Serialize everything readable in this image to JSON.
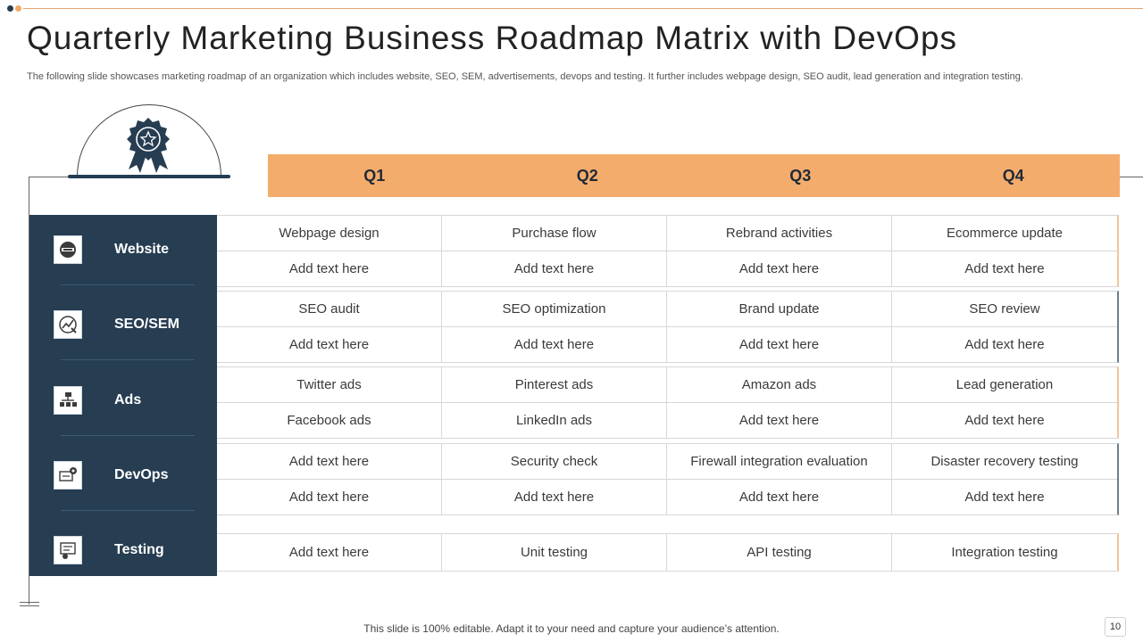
{
  "title": "Quarterly Marketing Business Roadmap Matrix with DevOps",
  "subtitle": "The following slide showcases marketing roadmap of an organization which includes website, SEO, SEM,  advertisements, devops and testing. It further includes webpage design, SEO audit, lead generation and integration testing.",
  "quarters": [
    "Q1",
    "Q2",
    "Q3",
    "Q4"
  ],
  "categories": [
    {
      "label": "Website",
      "icon": "website-icon"
    },
    {
      "label": "SEO/SEM",
      "icon": "seo-chart-icon"
    },
    {
      "label": "Ads",
      "icon": "ads-network-icon"
    },
    {
      "label": "DevOps",
      "icon": "devops-gear-icon"
    },
    {
      "label": "Testing",
      "icon": "testing-checklist-icon"
    }
  ],
  "matrix": [
    [
      [
        "Webpage design",
        "Purchase flow",
        "Rebrand activities",
        "Ecommerce update"
      ],
      [
        "Add text here",
        "Add text here",
        "Add text here",
        "Add text here"
      ]
    ],
    [
      [
        "SEO audit",
        "SEO optimization",
        "Brand update",
        "SEO review"
      ],
      [
        "Add text here",
        "Add text here",
        "Add text here",
        "Add text here"
      ]
    ],
    [
      [
        "Twitter ads",
        "Pinterest ads",
        "Amazon ads",
        "Lead generation"
      ],
      [
        "Facebook ads",
        "LinkedIn ads",
        "Add text here",
        "Add text here"
      ]
    ],
    [
      [
        "Add text here",
        "Security check",
        "Firewall integration evaluation",
        "Disaster recovery testing"
      ],
      [
        "Add text here",
        "Add text here",
        "Add text here",
        "Add text here"
      ]
    ],
    [
      [
        "Add text here",
        "Unit testing",
        "API testing",
        "Integration testing"
      ]
    ]
  ],
  "footer": "This slide is 100% editable. Adapt it to your need and capture your audience’s attention.",
  "page_number": "10",
  "colors": {
    "navy": "#263d52",
    "orange": "#f4ac6c"
  }
}
